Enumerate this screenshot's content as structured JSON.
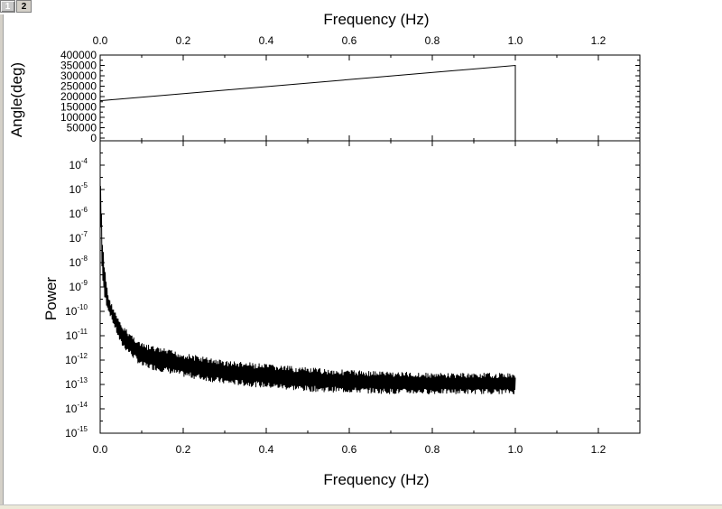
{
  "tabs": [
    {
      "label": "1",
      "active": true
    },
    {
      "label": "2",
      "active": false
    }
  ],
  "chart_data": [
    {
      "type": "line",
      "title": "",
      "xlabel": "Frequency (Hz)",
      "xlabel_position": "top",
      "ylabel": "Angle(deg)",
      "xlim": [
        0,
        1.3
      ],
      "ylim": [
        0,
        400000
      ],
      "xticks": [
        "0.0",
        "0.2",
        "0.4",
        "0.6",
        "0.8",
        "1.0",
        "1.2"
      ],
      "yticks": [
        "0",
        "50000",
        "100000",
        "150000",
        "200000",
        "250000",
        "300000",
        "350000",
        "400000"
      ],
      "series": [
        {
          "x": [
            0,
            1.0,
            1.0
          ],
          "y": [
            180000,
            350000,
            0
          ]
        }
      ]
    },
    {
      "type": "line",
      "title": "",
      "xlabel": "Frequency (Hz)",
      "xlabel_position": "bottom",
      "ylabel": "Power",
      "yscale": "log",
      "xlim": [
        0,
        1.3
      ],
      "ylim": [
        1e-15,
        0.001
      ],
      "xticks": [
        "0.0",
        "0.2",
        "0.4",
        "0.6",
        "0.8",
        "1.0",
        "1.2"
      ],
      "yticks": [
        "-15",
        "-14",
        "-13",
        "-12",
        "-11",
        "-10",
        "-9",
        "-8",
        "-7",
        "-6",
        "-5",
        "-4"
      ],
      "ytick_base": "10",
      "series": [
        {
          "x": [
            0.001,
            0.005,
            0.01,
            0.02,
            0.05,
            0.1,
            0.2,
            0.3,
            0.4,
            0.5,
            0.6,
            0.7,
            0.8,
            0.9,
            1.0
          ],
          "y_upper": [
            2e-05,
            1e-07,
            1e-08,
            4e-10,
            3e-11,
            5e-12,
            2e-12,
            1e-12,
            7e-13,
            5e-13,
            4e-13,
            3.5e-13,
            3e-13,
            3e-13,
            3e-13
          ],
          "y_lower": [
            1e-06,
            2e-09,
            3e-10,
            1e-10,
            4e-12,
            5e-13,
            2e-13,
            1e-13,
            7e-14,
            5e-14,
            4.5e-14,
            4e-14,
            4e-14,
            4e-14,
            4e-14
          ]
        }
      ]
    }
  ]
}
